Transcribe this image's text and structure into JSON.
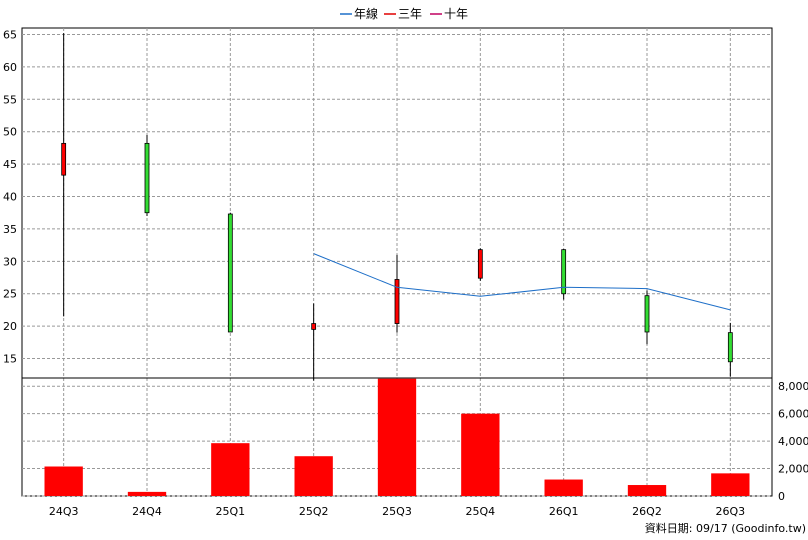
{
  "legend": [
    {
      "label": "年線",
      "color": "#1e6fc8"
    },
    {
      "label": "三年",
      "color": "#e00000"
    },
    {
      "label": "十年",
      "color": "#c00060"
    }
  ],
  "footer": "資料日期: 09/17  (Goodinfo.tw)",
  "colors": {
    "up": "#ff0000",
    "down": "#33dd33",
    "grid": "#999999",
    "line": "#1e6fc8",
    "volume": "#ff0000"
  },
  "chart_data": [
    {
      "type": "candlestick",
      "categories": [
        "24Q3",
        "24Q4",
        "25Q1",
        "25Q2",
        "25Q3",
        "25Q4",
        "26Q1",
        "26Q2",
        "26Q3"
      ],
      "ylim": [
        12,
        66
      ],
      "yticks": [
        15,
        20,
        25,
        30,
        35,
        40,
        45,
        50,
        55,
        60,
        65
      ],
      "grid": true,
      "candles": [
        {
          "open": 43.3,
          "high": 65.2,
          "low": 21.5,
          "close": 48.2
        },
        {
          "open": 48.2,
          "high": 49.5,
          "low": 37.0,
          "close": 37.5
        },
        {
          "open": 37.3,
          "high": 37.5,
          "low": 19.1,
          "close": 19.1
        },
        {
          "open": 19.5,
          "high": 23.5,
          "low": 11.6,
          "close": 20.4
        },
        {
          "open": 20.4,
          "high": 31.0,
          "low": 19.0,
          "close": 27.2
        },
        {
          "open": 27.4,
          "high": 32.0,
          "low": 27.0,
          "close": 31.8
        },
        {
          "open": 31.8,
          "high": 31.9,
          "low": 24.1,
          "close": 25.0
        },
        {
          "open": 24.7,
          "high": 25.5,
          "low": 17.2,
          "close": 19.1
        },
        {
          "open": 19.0,
          "high": 20.5,
          "low": 12.2,
          "close": 14.5
        }
      ],
      "series": [
        {
          "name": "年線",
          "values": [
            null,
            null,
            null,
            31.2,
            26.0,
            24.6,
            26.0,
            25.8,
            22.5
          ]
        }
      ]
    },
    {
      "type": "bar",
      "categories": [
        "24Q3",
        "24Q4",
        "25Q1",
        "25Q2",
        "25Q3",
        "25Q4",
        "26Q1",
        "26Q2",
        "26Q3"
      ],
      "values": [
        2150,
        300,
        3850,
        2900,
        8550,
        6000,
        1200,
        800,
        1650
      ],
      "ylim": [
        0,
        8600
      ],
      "yticks": [
        "0",
        "2,000",
        "4,000",
        "6,000",
        "8,000"
      ],
      "ytick_values": [
        0,
        2000,
        4000,
        6000,
        8000
      ]
    }
  ]
}
